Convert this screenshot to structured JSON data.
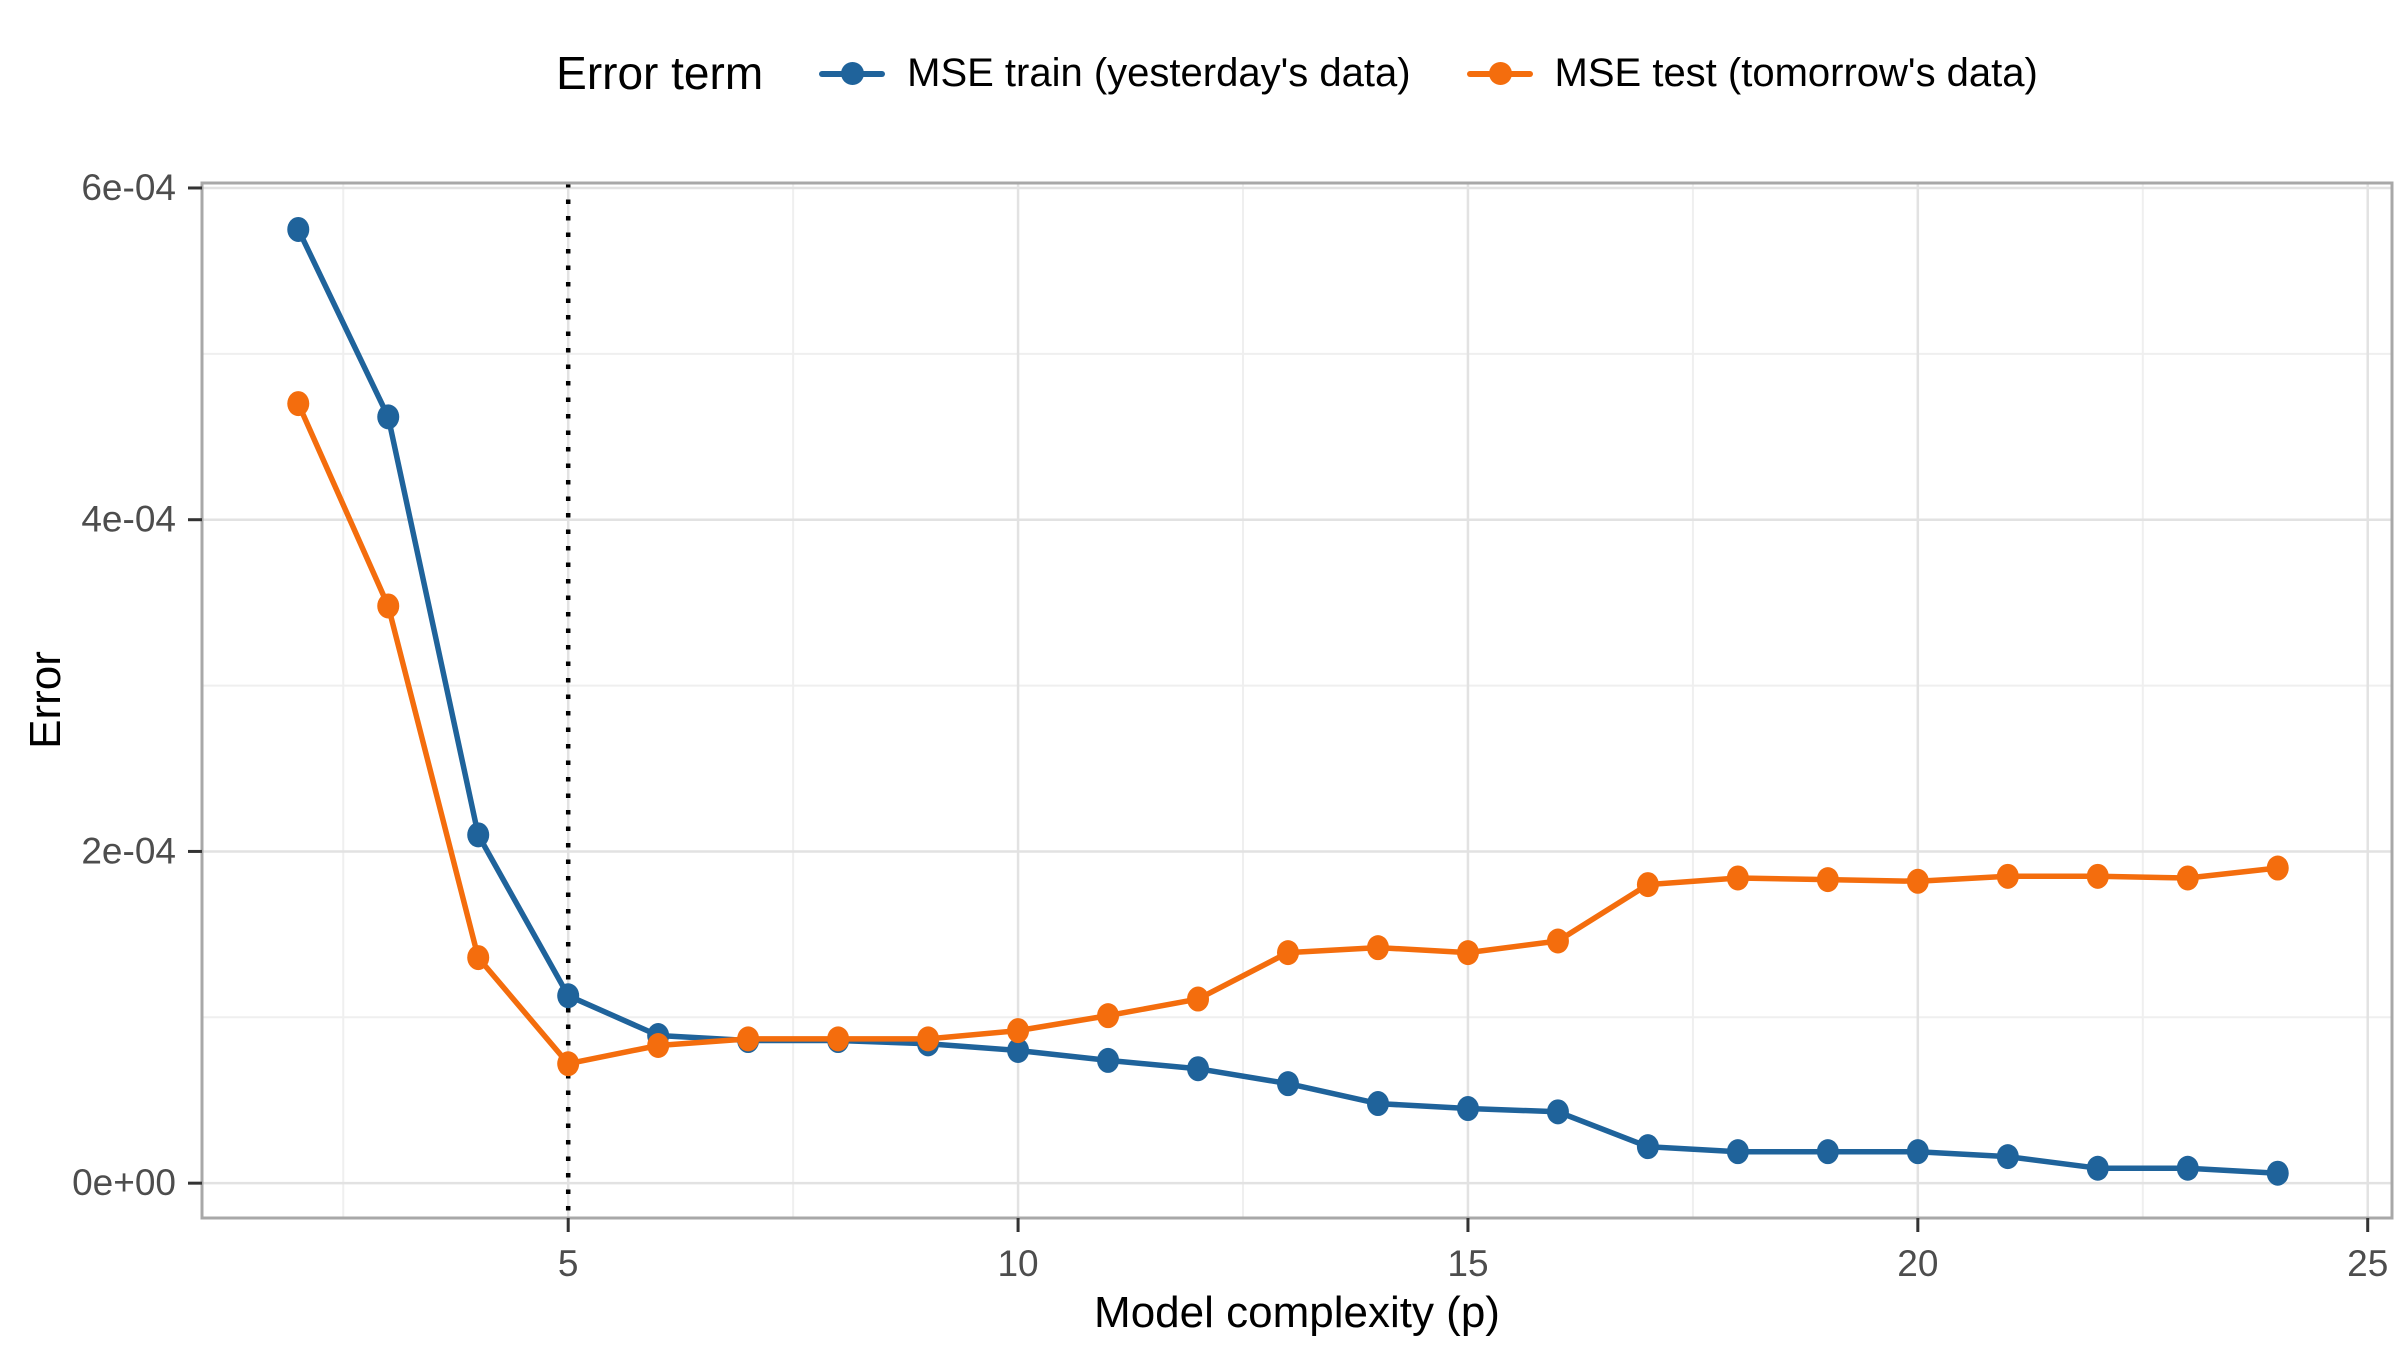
{
  "figure": {
    "background": "#ffffff",
    "legend": {
      "title": "Error term",
      "items": [
        {
          "label": "MSE train (yesterday's data)",
          "color": "#1f639b"
        },
        {
          "label": "MSE test (tomorrow's data)",
          "color": "#f46d0d"
        }
      ]
    },
    "x_axis": {
      "title": "Model complexity (p)",
      "tick_labels": [
        "5",
        "10",
        "15",
        "20",
        "25"
      ],
      "tick_values": [
        5,
        10,
        15,
        20,
        25
      ],
      "minor_tick_values": [
        2.5,
        7.5,
        12.5,
        17.5,
        22.5
      ],
      "range": [
        0.93,
        25.27
      ]
    },
    "y_axis": {
      "title": "Error",
      "ticks": [
        {
          "value": 0.0,
          "label": "0e+00"
        },
        {
          "value": 0.0002,
          "label": "2e-04"
        },
        {
          "value": 0.0004,
          "label": "4e-04"
        },
        {
          "value": 0.0006,
          "label": "6e-04"
        }
      ],
      "minor_tick_values": [
        0.0001,
        0.0003,
        0.0005
      ],
      "range": [
        -2.1e-05,
        0.000603
      ]
    },
    "reference_line": {
      "x": 5,
      "style": "dotted",
      "color": "#000000"
    },
    "colors": {
      "major_grid": "#e2e2e2",
      "minor_grid": "#efefef",
      "panel_border": "#a8a8a8",
      "tick_mark": "#333333",
      "tick_label": "#4d4d4d"
    }
  },
  "chart_data": {
    "type": "line",
    "title": "",
    "xlabel": "Model complexity (p)",
    "ylabel": "Error",
    "legend_title": "Error term",
    "legend_position": "top",
    "grid": true,
    "x": [
      2,
      3,
      4,
      5,
      6,
      7,
      8,
      9,
      10,
      11,
      12,
      13,
      14,
      15,
      16,
      17,
      18,
      19,
      20,
      21,
      22,
      23,
      24
    ],
    "xlim": [
      0.93,
      25.27
    ],
    "ylim": [
      -2.1e-05,
      0.000603
    ],
    "series": [
      {
        "name": "MSE train (yesterday's data)",
        "color": "#1f639b",
        "marker": "circle",
        "values": [
          0.000575,
          0.000462,
          0.00021,
          0.000113,
          8.9e-05,
          8.6e-05,
          8.6e-05,
          8.4e-05,
          8e-05,
          7.4e-05,
          6.9e-05,
          6e-05,
          4.8e-05,
          4.5e-05,
          4.3e-05,
          2.2e-05,
          1.9e-05,
          1.9e-05,
          1.9e-05,
          1.6e-05,
          9e-06,
          9e-06,
          6e-06
        ]
      },
      {
        "name": "MSE test (tomorrow's data)",
        "color": "#f46d0d",
        "marker": "circle",
        "values": [
          0.00047,
          0.000348,
          0.000136,
          7.2e-05,
          8.3e-05,
          8.7e-05,
          8.7e-05,
          8.7e-05,
          9.2e-05,
          0.000101,
          0.000111,
          0.000139,
          0.000142,
          0.000139,
          0.000146,
          0.00018,
          0.000184,
          0.000183,
          0.000182,
          0.000185,
          0.000185,
          0.000184,
          0.00019
        ]
      }
    ],
    "annotations": [
      {
        "type": "vline",
        "x": 5,
        "style": "dotted"
      }
    ]
  }
}
